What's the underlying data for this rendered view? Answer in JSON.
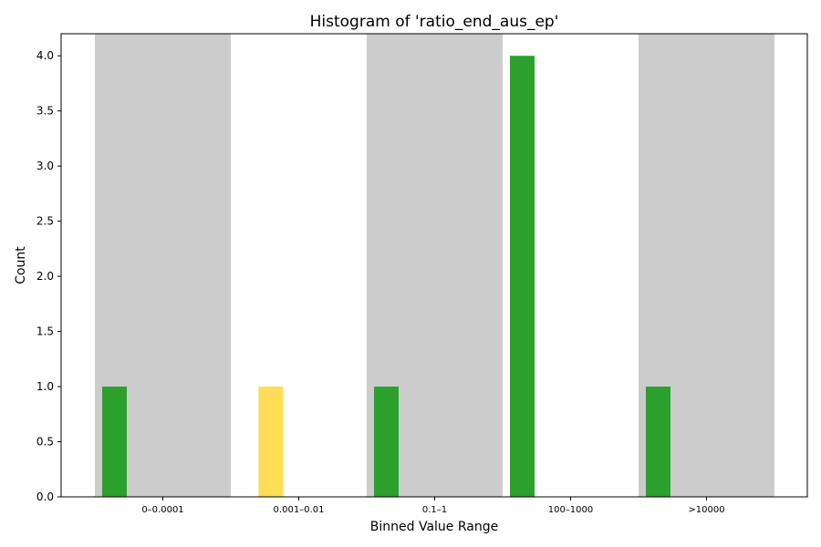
{
  "chart_data": {
    "type": "bar",
    "title": "Histogram of 'ratio_end_aus_ep'",
    "xlabel": "Binned Value Range",
    "ylabel": "Count",
    "ylim": [
      0,
      4.2
    ],
    "yticks": [
      0.0,
      0.5,
      1.0,
      1.5,
      2.0,
      2.5,
      3.0,
      3.5,
      4.0
    ],
    "ytick_labels": [
      "0.0",
      "0.5",
      "1.0",
      "1.5",
      "2.0",
      "2.5",
      "3.0",
      "3.5",
      "4.0"
    ],
    "group_labels": [
      "0–0.0001",
      "0.001–0.01",
      "0.1–1",
      "100–1000",
      ">10000"
    ],
    "shaded_groups": [
      0,
      2,
      4
    ],
    "bars": [
      {
        "slot": 0,
        "value": 1,
        "color": "#2ca02c"
      },
      {
        "slot": 1.15,
        "value": 1,
        "color": "#ffdd57"
      },
      {
        "slot": 2,
        "value": 1,
        "color": "#2ca02c"
      },
      {
        "slot": 3,
        "value": 4,
        "color": "#2ca02c"
      },
      {
        "slot": 4,
        "value": 1,
        "color": "#2ca02c"
      }
    ],
    "colors": {
      "shade": "#cccccc",
      "green": "#2ca02c",
      "yellow": "#ffdd57"
    },
    "grid": false,
    "legend": "none"
  }
}
